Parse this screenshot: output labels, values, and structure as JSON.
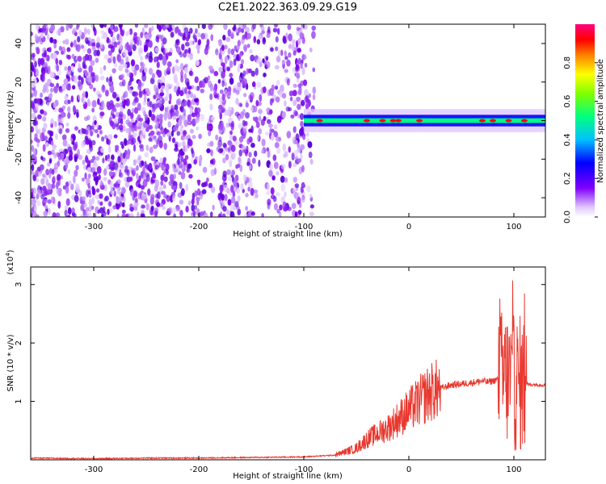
{
  "title": "C2E1.2022.363.09.29.G19",
  "chart_data": [
    {
      "type": "heatmap",
      "title": "C2E1.2022.363.09.29.G19",
      "xlabel": "Height of straight line (km)",
      "ylabel": "Frequency (Hz)",
      "xlim": [
        -360,
        130
      ],
      "ylim": [
        -50,
        50
      ],
      "xticks": [
        -300,
        -200,
        -100,
        0,
        100
      ],
      "yticks": [
        -40,
        -20,
        0,
        20,
        40
      ],
      "colorbar": {
        "label": "Normalized spectral amplitude",
        "range": [
          0,
          1
        ],
        "ticks": [
          0.0,
          0.2,
          0.4,
          0.6,
          0.8
        ],
        "colors": [
          "#ffffff",
          "#e0c8ff",
          "#8000ff",
          "#0000ff",
          "#00c0ff",
          "#00ff80",
          "#80ff00",
          "#ffff00",
          "#ff8000",
          "#ff0000",
          "#ff0080"
        ]
      },
      "description_values": {
        "noise_region_x": [
          -360,
          -90
        ],
        "signal_start_x": -100,
        "signal_center_freq": 0,
        "signal_end_x": 130,
        "high_amplitude_points_x": [
          -85,
          -40,
          -25,
          -15,
          -10,
          10,
          70,
          80,
          95,
          110
        ]
      }
    },
    {
      "type": "line",
      "xlabel": "Height of straight line (km)",
      "ylabel": "SNR (10 * v/v)",
      "y_multiplier": "(x10",
      "y_multiplier_exp": "4",
      "y_multiplier_close": ")",
      "xlim": [
        -360,
        130
      ],
      "ylim": [
        0,
        3.3
      ],
      "xticks": [
        -300,
        -200,
        -100,
        0,
        100
      ],
      "yticks": [
        1,
        2,
        3
      ],
      "series": [
        {
          "color": "#e8382f",
          "x": [
            -360,
            -300,
            -250,
            -200,
            -150,
            -100,
            -70,
            -50,
            -40,
            -30,
            -20,
            -10,
            0,
            10,
            20,
            30,
            40,
            50,
            60,
            70,
            75,
            80,
            85,
            90,
            95,
            100,
            105,
            110,
            115,
            120,
            130
          ],
          "y": [
            0.03,
            0.02,
            0.03,
            0.03,
            0.04,
            0.05,
            0.08,
            0.2,
            0.35,
            0.45,
            0.55,
            0.7,
            0.85,
            1.0,
            1.15,
            1.22,
            1.28,
            1.3,
            1.32,
            1.35,
            1.33,
            1.35,
            1.38,
            1.4,
            1.38,
            1.3,
            1.3,
            1.3,
            1.29,
            1.29,
            1.28
          ]
        }
      ]
    }
  ]
}
